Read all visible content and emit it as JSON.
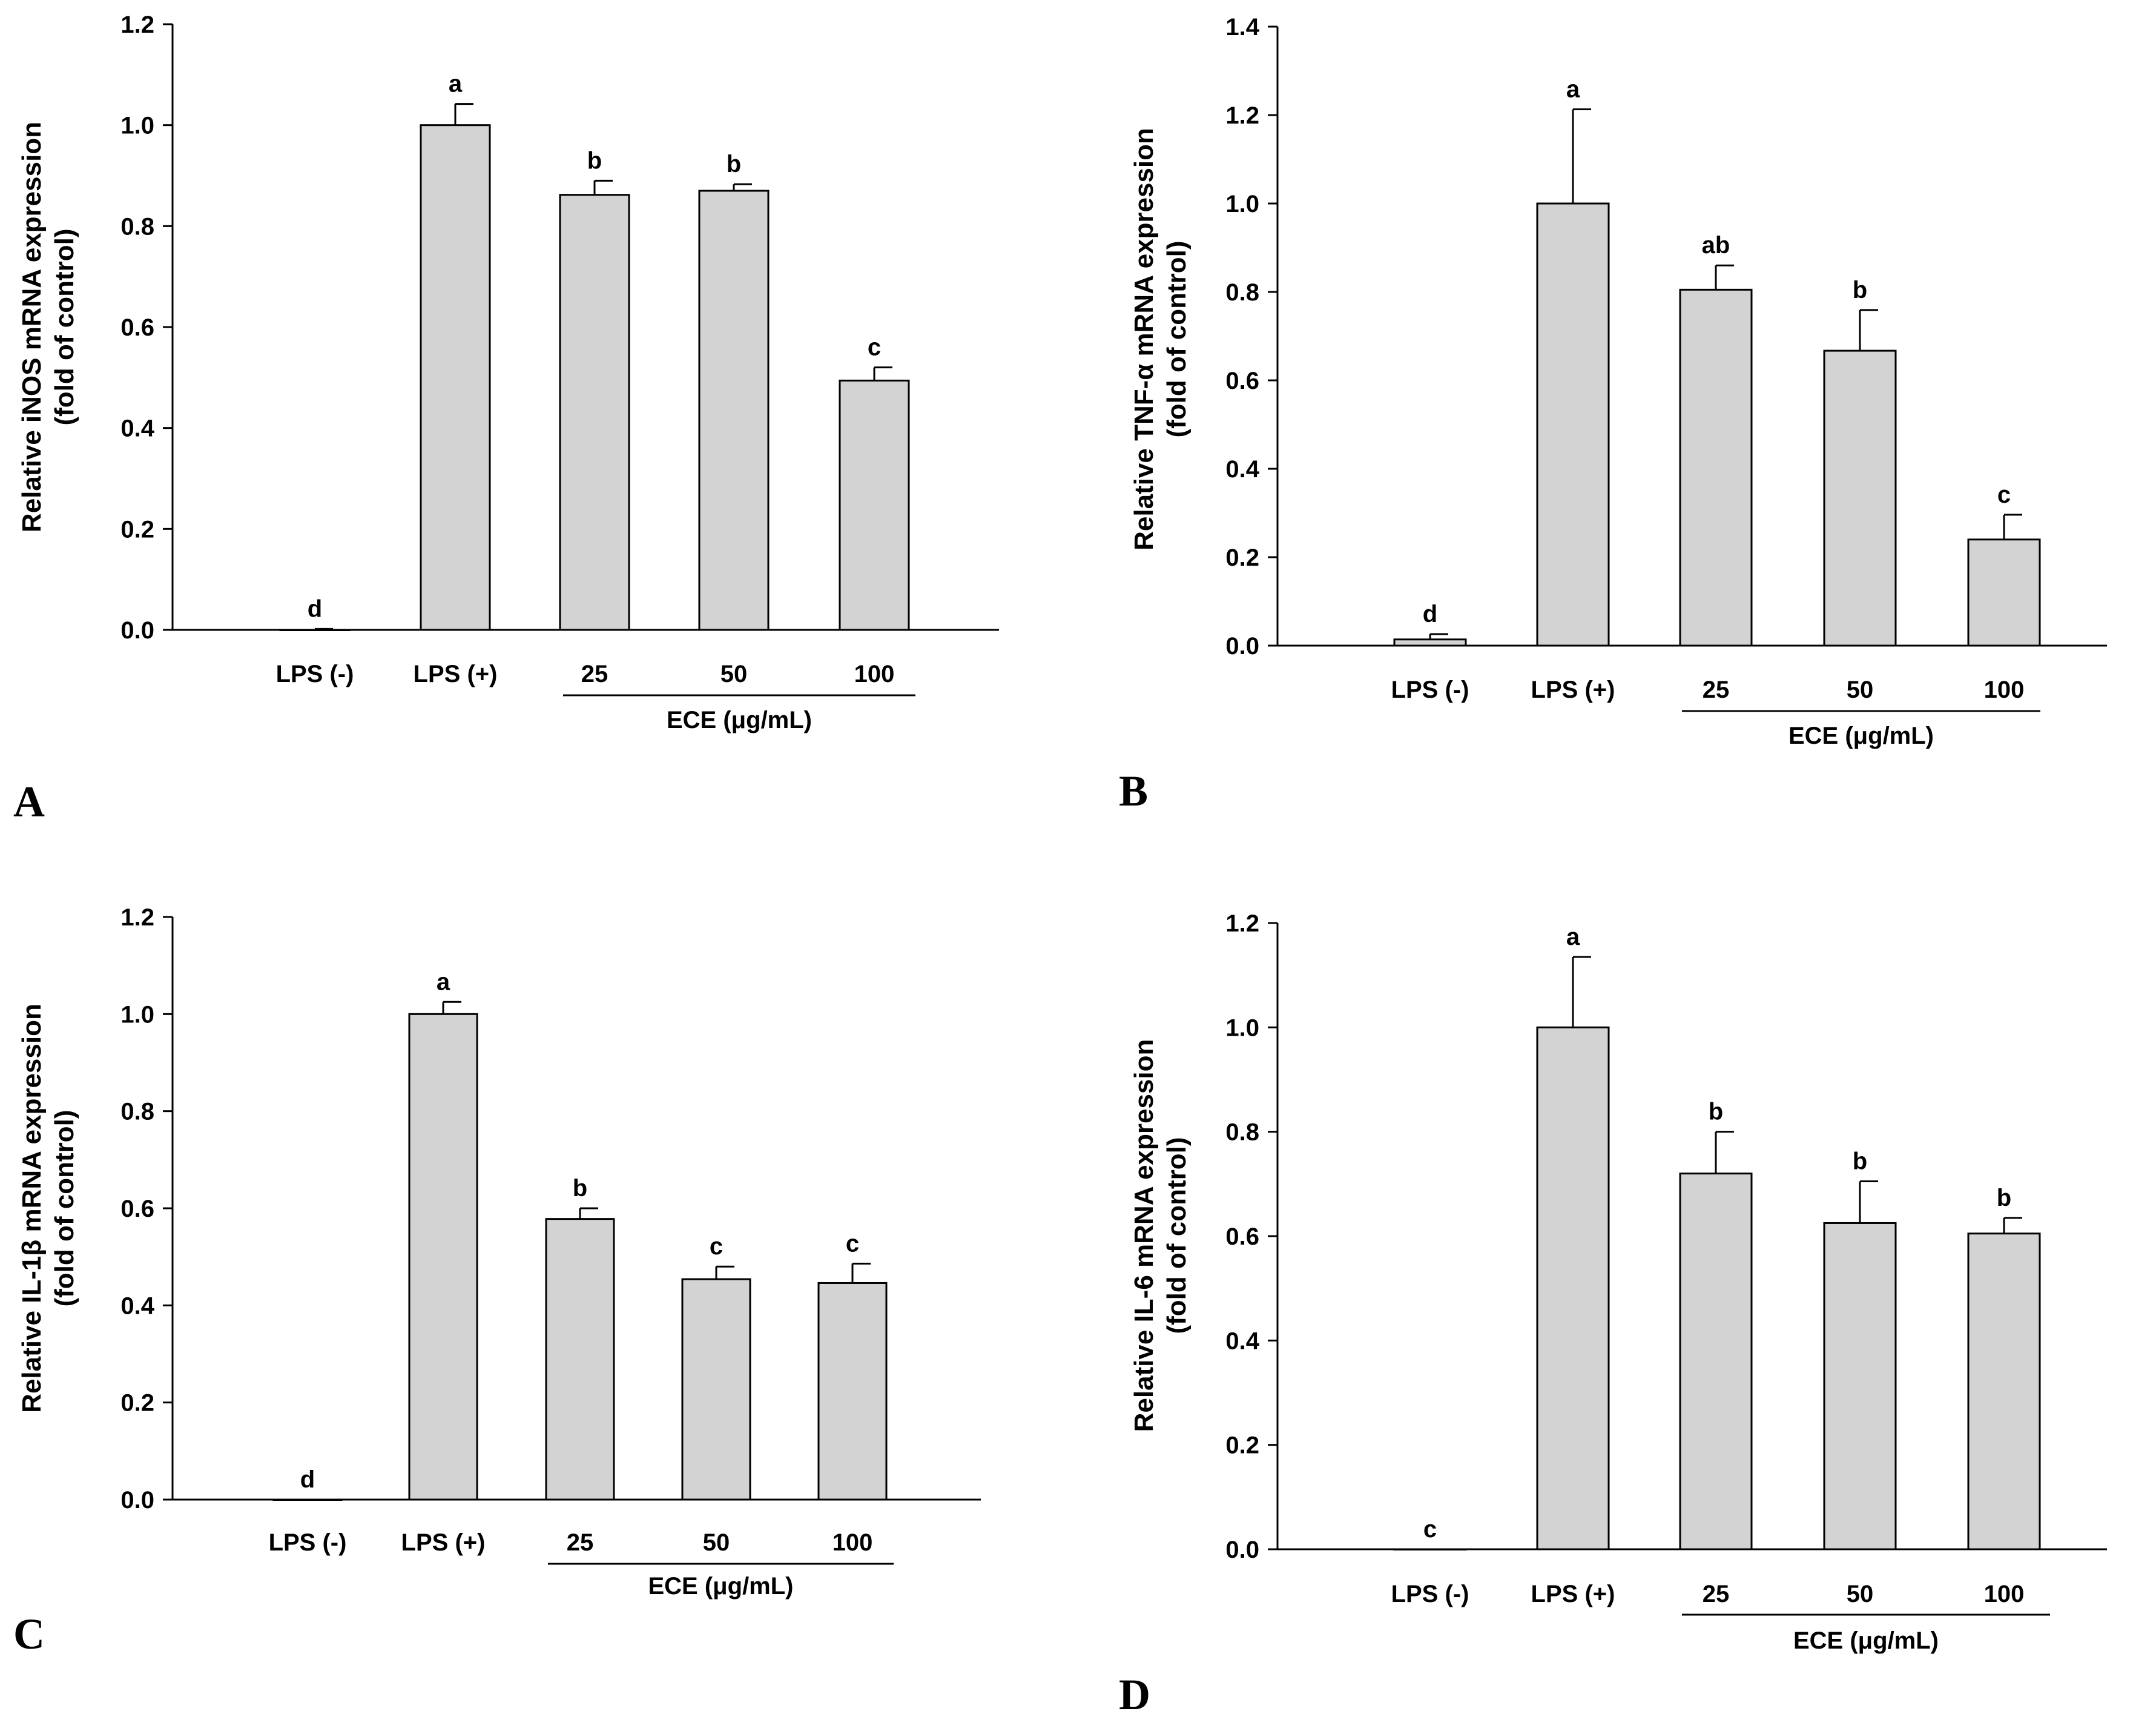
{
  "figure": {
    "charts": [
      "A",
      "B",
      "C",
      "D"
    ]
  },
  "chart_data": [
    {
      "id": "A",
      "panel_label": "A",
      "type": "bar",
      "categories": [
        "LPS (-)",
        "LPS (+)",
        "25",
        "50",
        "100"
      ],
      "values": [
        0.0,
        1.0,
        0.862,
        0.87,
        0.494
      ],
      "errors": [
        0.002,
        0.042,
        0.028,
        0.013,
        0.026
      ],
      "letters": [
        "d",
        "a",
        "b",
        "b",
        "c"
      ],
      "ylabel_line1": "Relative iNOS mRNA expression",
      "ylabel_line2": "(fold of control)",
      "group_label": "ECE (μg/mL)",
      "ylim": [
        0,
        1.2
      ],
      "yticks": [
        "0.0",
        "0.2",
        "0.4",
        "0.6",
        "0.8",
        "1.0",
        "1.2"
      ]
    },
    {
      "id": "B",
      "panel_label": "B",
      "type": "bar",
      "categories": [
        "LPS (-)",
        "LPS (+)",
        "25",
        "50",
        "100"
      ],
      "values": [
        0.014,
        1.0,
        0.805,
        0.667,
        0.24
      ],
      "errors": [
        0.012,
        0.213,
        0.055,
        0.092,
        0.056
      ],
      "letters": [
        "d",
        "a",
        "ab",
        "b",
        "c"
      ],
      "ylabel_line1": "Relative TNF-α mRNA expression",
      "ylabel_line2": "(fold of control)",
      "group_label": "ECE (μg/mL)",
      "ylim": [
        0,
        1.4
      ],
      "yticks": [
        "0.0",
        "0.2",
        "0.4",
        "0.6",
        "0.8",
        "1.0",
        "1.2",
        "1.4"
      ]
    },
    {
      "id": "C",
      "panel_label": "C",
      "type": "bar",
      "categories": [
        "LPS (-)",
        "LPS (+)",
        "25",
        "50",
        "100"
      ],
      "values": [
        0.0,
        1.0,
        0.578,
        0.454,
        0.446
      ],
      "errors": [
        0.0,
        0.025,
        0.022,
        0.026,
        0.04
      ],
      "letters": [
        "d",
        "a",
        "b",
        "c",
        "c"
      ],
      "ylabel_line1": "Relative IL-1β mRNA expression",
      "ylabel_line2": "(fold of control)",
      "group_label": "ECE (μg/mL)",
      "ylim": [
        0,
        1.2
      ],
      "yticks": [
        "0.0",
        "0.2",
        "0.4",
        "0.6",
        "0.8",
        "1.0",
        "1.2"
      ]
    },
    {
      "id": "D",
      "panel_label": "D",
      "type": "bar",
      "categories": [
        "LPS (-)",
        "LPS (+)",
        "25",
        "50",
        "100"
      ],
      "values": [
        0.0,
        1.0,
        0.72,
        0.625,
        0.605
      ],
      "errors": [
        0.0,
        0.135,
        0.08,
        0.08,
        0.03
      ],
      "letters": [
        "c",
        "a",
        "b",
        "b",
        "b"
      ],
      "ylabel_line1": "Relative IL-6 mRNA expression",
      "ylabel_line2": "(fold of control)",
      "group_label": "ECE (μg/mL)",
      "ylim": [
        0,
        1.2
      ],
      "yticks": [
        "0.0",
        "0.2",
        "0.4",
        "0.6",
        "0.8",
        "1.0",
        "1.2"
      ]
    }
  ]
}
